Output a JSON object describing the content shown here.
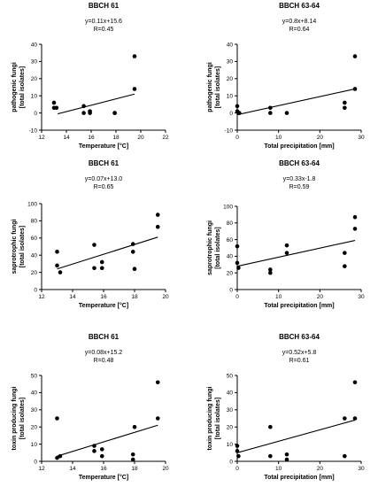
{
  "chart_data": [
    {
      "type": "scatter",
      "title": "BBCH 61",
      "equation": "y=0.11x+15.6",
      "r_text": "R=0.45",
      "xlabel": "Temperature [°C]",
      "ylabel": [
        "pathogenic fungi",
        "[total isolates]"
      ],
      "xlim": [
        12,
        22
      ],
      "xticks": [
        12,
        14,
        16,
        18,
        20,
        22
      ],
      "ylim": [
        -10,
        40
      ],
      "yticks": [
        -10,
        0,
        10,
        20,
        30,
        40
      ],
      "points": [
        [
          13.0,
          6
        ],
        [
          13.0,
          3
        ],
        [
          13.2,
          3
        ],
        [
          15.4,
          4
        ],
        [
          15.4,
          0
        ],
        [
          15.9,
          1
        ],
        [
          15.9,
          0
        ],
        [
          17.9,
          0
        ],
        [
          17.9,
          0
        ],
        [
          19.5,
          33
        ],
        [
          19.5,
          14
        ]
      ],
      "fit": {
        "x": [
          13.3,
          19.5
        ],
        "y": [
          -0.5,
          11
        ]
      }
    },
    {
      "type": "scatter",
      "title": "BBCH 63-64",
      "equation": "y=0.8x+8.14",
      "r_text": "R=0.64",
      "xlabel": "Total precipitation [mm]",
      "ylabel": [
        "pathogenic fungi",
        "[total isolates]"
      ],
      "xlim": [
        0,
        30
      ],
      "xticks": [
        0,
        10,
        20,
        30
      ],
      "ylim": [
        -10,
        40
      ],
      "yticks": [
        -10,
        0,
        10,
        20,
        30,
        40
      ],
      "points": [
        [
          0,
          4
        ],
        [
          0,
          1
        ],
        [
          0.3,
          0
        ],
        [
          0.5,
          0
        ],
        [
          8,
          3
        ],
        [
          8,
          0
        ],
        [
          12,
          0
        ],
        [
          26,
          6
        ],
        [
          26,
          3
        ],
        [
          28.5,
          33
        ],
        [
          28.5,
          14
        ]
      ],
      "fit": {
        "x": [
          0,
          28.5
        ],
        "y": [
          -1,
          14
        ]
      }
    },
    {
      "type": "scatter",
      "title": "BBCH 61",
      "equation": "y=0.07x+13.0",
      "r_text": "R=0.65",
      "xlabel": "Temperature [°C]",
      "ylabel": [
        "saprotrophic fungi",
        "[total isolates]"
      ],
      "xlim": [
        12,
        20
      ],
      "xticks": [
        12,
        14,
        16,
        18,
        20
      ],
      "ylim": [
        0,
        100
      ],
      "yticks": [
        0,
        20,
        40,
        60,
        80,
        100
      ],
      "points": [
        [
          13.0,
          44
        ],
        [
          13.0,
          28
        ],
        [
          13.2,
          20
        ],
        [
          15.4,
          52
        ],
        [
          15.4,
          25
        ],
        [
          15.9,
          32
        ],
        [
          15.9,
          25
        ],
        [
          17.9,
          53
        ],
        [
          17.9,
          44
        ],
        [
          18.0,
          24
        ],
        [
          19.5,
          87
        ],
        [
          19.5,
          73
        ]
      ],
      "fit": {
        "x": [
          13.0,
          19.5
        ],
        "y": [
          24,
          61
        ]
      }
    },
    {
      "type": "scatter",
      "title": "BBCH 63-64",
      "equation": "y=0.33x-1.8",
      "r_text": "R=0.59",
      "xlabel": "Total precipitation [mm]",
      "ylabel": [
        "saprotrophic fungi",
        "[total isolates]"
      ],
      "xlim": [
        0,
        30
      ],
      "xticks": [
        0,
        10,
        20,
        30
      ],
      "ylim": [
        0,
        100
      ],
      "yticks": [
        0,
        20,
        40,
        60,
        80,
        100
      ],
      "points": [
        [
          0,
          52
        ],
        [
          0,
          32
        ],
        [
          0.3,
          26
        ],
        [
          8,
          24
        ],
        [
          8,
          20
        ],
        [
          12,
          53
        ],
        [
          12,
          44
        ],
        [
          26,
          44
        ],
        [
          26,
          28
        ],
        [
          28.5,
          87
        ],
        [
          28.5,
          73
        ]
      ],
      "fit": {
        "x": [
          0,
          28.5
        ],
        "y": [
          28,
          59
        ]
      }
    },
    {
      "type": "scatter",
      "title": "BBCH 61",
      "equation": "y=0.08x+15.2",
      "r_text": "R=0.48",
      "xlabel": "Temperature [°C]",
      "ylabel": [
        "toxin producing fungi",
        "[total isolates]"
      ],
      "xlim": [
        12,
        20
      ],
      "xticks": [
        12,
        14,
        16,
        18,
        20
      ],
      "ylim": [
        0,
        50
      ],
      "yticks": [
        0,
        10,
        20,
        30,
        40,
        50
      ],
      "points": [
        [
          13.0,
          25
        ],
        [
          13.0,
          2
        ],
        [
          13.2,
          3
        ],
        [
          15.4,
          9
        ],
        [
          15.4,
          6
        ],
        [
          15.9,
          7
        ],
        [
          15.9,
          3
        ],
        [
          17.9,
          4
        ],
        [
          17.9,
          1
        ],
        [
          18.0,
          20
        ],
        [
          19.5,
          46
        ],
        [
          19.5,
          25
        ]
      ],
      "fit": {
        "x": [
          13.0,
          19.5
        ],
        "y": [
          3,
          21
        ]
      }
    },
    {
      "type": "scatter",
      "title": "BBCH 63-64",
      "equation": "y=0.52x+5.8",
      "r_text": "R=0.61",
      "xlabel": "Total precipitation [mm]",
      "ylabel": [
        "toxin producing fungi",
        "[total isolates]"
      ],
      "xlim": [
        0,
        30
      ],
      "xticks": [
        0,
        10,
        20,
        30
      ],
      "ylim": [
        0,
        50
      ],
      "yticks": [
        0,
        10,
        20,
        30,
        40,
        50
      ],
      "points": [
        [
          0,
          9
        ],
        [
          0,
          6
        ],
        [
          0.3,
          3
        ],
        [
          8,
          20
        ],
        [
          8,
          3
        ],
        [
          12,
          4
        ],
        [
          12,
          1
        ],
        [
          26,
          25
        ],
        [
          26,
          3
        ],
        [
          28.5,
          46
        ],
        [
          28.5,
          25
        ]
      ],
      "fit": {
        "x": [
          0,
          28.5
        ],
        "y": [
          5,
          24
        ]
      }
    }
  ]
}
